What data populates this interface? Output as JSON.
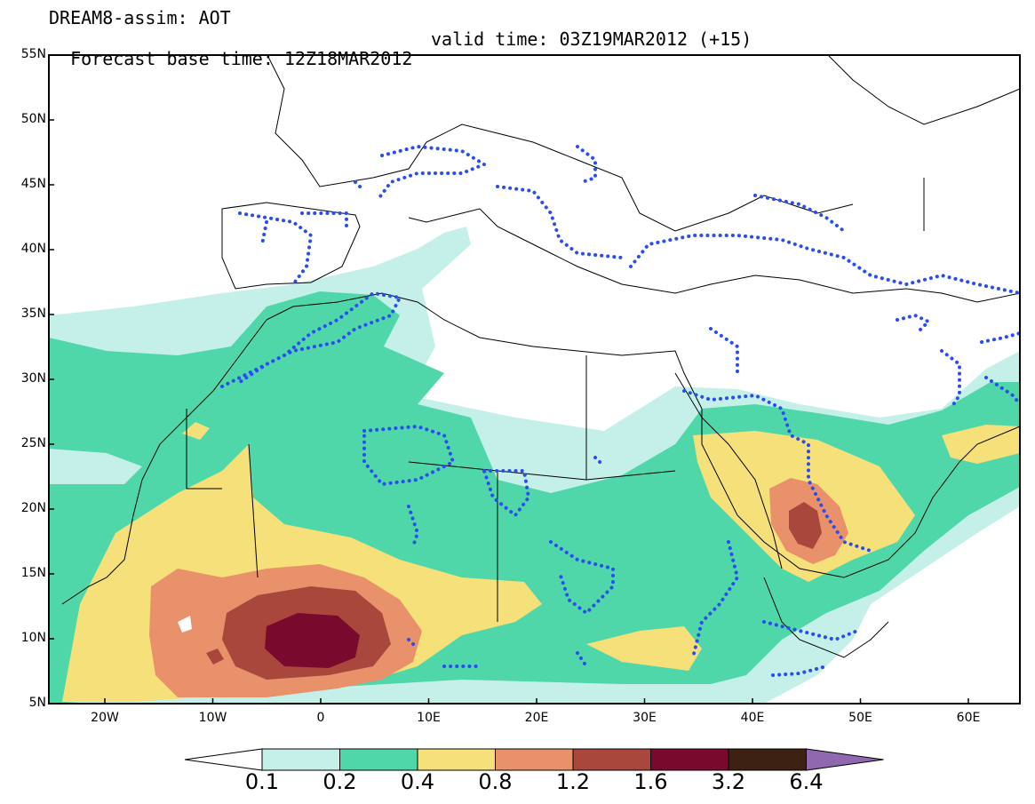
{
  "header": {
    "title": "DREAM8-assim: AOT",
    "base_time": "Forecast base time: 12Z18MAR2012",
    "valid_time": "valid time: 03Z19MAR2012 (+15)"
  },
  "map": {
    "lat_labels": [
      "55N",
      "50N",
      "45N",
      "40N",
      "35N",
      "30N",
      "25N",
      "20N",
      "15N",
      "10N",
      "5N"
    ],
    "lon_labels": [
      "20W",
      "10W",
      "0",
      "10E",
      "20E",
      "30E",
      "40E",
      "50E",
      "60E"
    ],
    "dotted_contour_color": "#2a4df0"
  },
  "colorbar": {
    "labels": [
      "0.1",
      "0.2",
      "0.4",
      "0.8",
      "1.2",
      "1.6",
      "3.2",
      "6.4"
    ],
    "colors": [
      "#ffffff",
      "#c4f0e9",
      "#4fd7a9",
      "#f6e07a",
      "#e8916a",
      "#a9473d",
      "#7a0a2d",
      "#3d2213",
      "#8f68b0"
    ]
  }
}
